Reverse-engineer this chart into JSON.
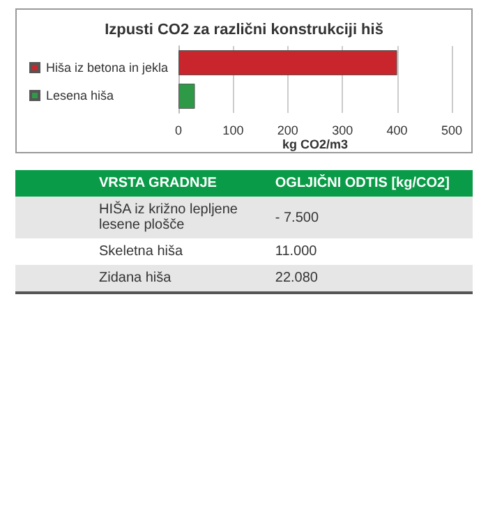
{
  "chart_data": [
    {
      "type": "bar",
      "title": "Izpusti CO2 za različni konstrukciji hiš",
      "orientation": "horizontal",
      "categories": [
        null,
        null
      ],
      "series": [
        {
          "name": "Hiša iz betona in jekla",
          "color": "#c8262c",
          "values": [
            400,
            null
          ]
        },
        {
          "name": "Lesena hiša",
          "color": "#2e9a48",
          "values": [
            null,
            30
          ]
        }
      ],
      "xlim": [
        0,
        500
      ],
      "xticks": [
        0,
        100,
        200,
        300,
        400,
        500
      ],
      "xlabel": "kg CO2/m3",
      "grid": "x",
      "legend": "left"
    },
    {
      "type": "other",
      "annotations": [
        "VRSTA GRADNJE",
        "OGLJIČNI ODTIS [kg/CO2]",
        "HIŠA iz križno lepljene lesene plošče",
        "- 7.500",
        "Skeletna hiša",
        "11.000",
        "Zidana hiša",
        "22.080"
      ]
    }
  ]
}
